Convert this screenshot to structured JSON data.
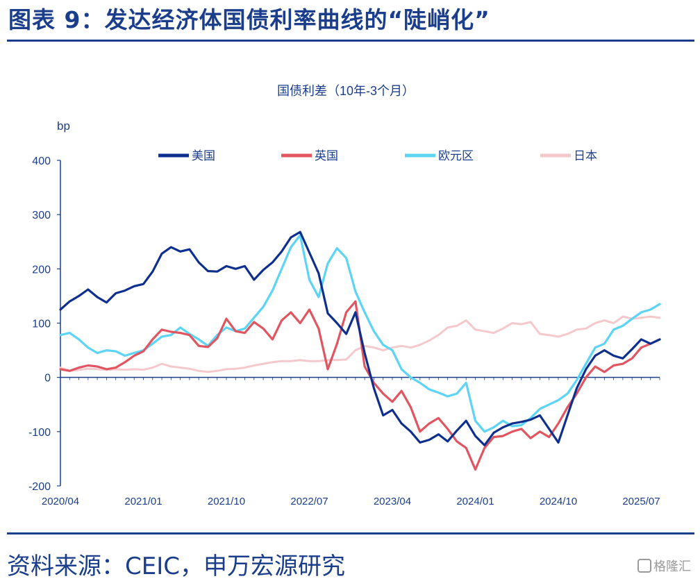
{
  "figure": {
    "title": "图表 9：发达经济体国债利率曲线的“陡峭化”",
    "source": "资料来源：CEIC，申万宏源研究",
    "watermark": "格隆汇"
  },
  "chart_data": {
    "type": "line",
    "title": "国债利差（10年-3个月）",
    "ylabel": "bp",
    "ylim": [
      -200,
      400
    ],
    "yticks": [
      400,
      300,
      200,
      100,
      0,
      -100,
      -200
    ],
    "xlim": [
      "2020-04",
      "2025-09"
    ],
    "xticks": [
      "2020/04",
      "2021/01",
      "2021/10",
      "2022/07",
      "2023/04",
      "2024/01",
      "2024/10",
      "2025/07"
    ],
    "legend_position": "top",
    "grid": false,
    "series": [
      {
        "name": "美国",
        "color": "#0f2f8f",
        "points": [
          [
            "2020-04",
            125
          ],
          [
            "2020-05",
            140
          ],
          [
            "2020-06",
            150
          ],
          [
            "2020-07",
            162
          ],
          [
            "2020-08",
            148
          ],
          [
            "2020-09",
            138
          ],
          [
            "2020-10",
            155
          ],
          [
            "2020-11",
            160
          ],
          [
            "2020-12",
            168
          ],
          [
            "2021-01",
            172
          ],
          [
            "2021-02",
            195
          ],
          [
            "2021-03",
            228
          ],
          [
            "2021-04",
            240
          ],
          [
            "2021-05",
            232
          ],
          [
            "2021-06",
            236
          ],
          [
            "2021-07",
            212
          ],
          [
            "2021-08",
            196
          ],
          [
            "2021-09",
            195
          ],
          [
            "2021-10",
            205
          ],
          [
            "2021-11",
            200
          ],
          [
            "2021-12",
            205
          ],
          [
            "2022-01",
            180
          ],
          [
            "2022-02",
            198
          ],
          [
            "2022-03",
            212
          ],
          [
            "2022-04",
            232
          ],
          [
            "2022-05",
            258
          ],
          [
            "2022-06",
            268
          ],
          [
            "2022-07",
            230
          ],
          [
            "2022-08",
            192
          ],
          [
            "2022-09",
            118
          ],
          [
            "2022-10",
            100
          ],
          [
            "2022-11",
            80
          ],
          [
            "2022-12",
            120
          ],
          [
            "2023-01",
            45
          ],
          [
            "2023-02",
            -20
          ],
          [
            "2023-03",
            -70
          ],
          [
            "2023-04",
            -60
          ],
          [
            "2023-05",
            -85
          ],
          [
            "2023-06",
            -100
          ],
          [
            "2023-07",
            -120
          ],
          [
            "2023-08",
            -115
          ],
          [
            "2023-09",
            -105
          ],
          [
            "2023-10",
            -118
          ],
          [
            "2023-11",
            -98
          ],
          [
            "2023-12",
            -80
          ],
          [
            "2024-01",
            -108
          ],
          [
            "2024-02",
            -125
          ],
          [
            "2024-03",
            -102
          ],
          [
            "2024-04",
            -92
          ],
          [
            "2024-05",
            -85
          ],
          [
            "2024-06",
            -82
          ],
          [
            "2024-07",
            -78
          ],
          [
            "2024-08",
            -70
          ],
          [
            "2024-09",
            -95
          ],
          [
            "2024-10",
            -120
          ],
          [
            "2024-11",
            -70
          ],
          [
            "2024-12",
            -20
          ],
          [
            "2025-01",
            15
          ],
          [
            "2025-02",
            40
          ],
          [
            "2025-03",
            50
          ],
          [
            "2025-04",
            40
          ],
          [
            "2025-05",
            35
          ],
          [
            "2025-06",
            52
          ],
          [
            "2025-07",
            70
          ],
          [
            "2025-08",
            62
          ],
          [
            "2025-09",
            70
          ]
        ]
      },
      {
        "name": "英国",
        "color": "#e05560",
        "points": [
          [
            "2020-04",
            15
          ],
          [
            "2020-05",
            12
          ],
          [
            "2020-06",
            18
          ],
          [
            "2020-07",
            22
          ],
          [
            "2020-08",
            20
          ],
          [
            "2020-09",
            15
          ],
          [
            "2020-10",
            18
          ],
          [
            "2020-11",
            28
          ],
          [
            "2020-12",
            40
          ],
          [
            "2021-01",
            48
          ],
          [
            "2021-02",
            70
          ],
          [
            "2021-03",
            88
          ],
          [
            "2021-04",
            84
          ],
          [
            "2021-05",
            82
          ],
          [
            "2021-06",
            78
          ],
          [
            "2021-07",
            58
          ],
          [
            "2021-08",
            56
          ],
          [
            "2021-09",
            72
          ],
          [
            "2021-10",
            108
          ],
          [
            "2021-11",
            85
          ],
          [
            "2021-12",
            82
          ],
          [
            "2022-01",
            102
          ],
          [
            "2022-02",
            90
          ],
          [
            "2022-03",
            70
          ],
          [
            "2022-04",
            105
          ],
          [
            "2022-05",
            120
          ],
          [
            "2022-06",
            100
          ],
          [
            "2022-07",
            125
          ],
          [
            "2022-08",
            90
          ],
          [
            "2022-09",
            15
          ],
          [
            "2022-10",
            62
          ],
          [
            "2022-11",
            120
          ],
          [
            "2022-12",
            140
          ],
          [
            "2023-01",
            20
          ],
          [
            "2023-02",
            -10
          ],
          [
            "2023-03",
            -30
          ],
          [
            "2023-04",
            -45
          ],
          [
            "2023-05",
            -25
          ],
          [
            "2023-06",
            -55
          ],
          [
            "2023-07",
            -100
          ],
          [
            "2023-08",
            -85
          ],
          [
            "2023-09",
            -75
          ],
          [
            "2023-10",
            -95
          ],
          [
            "2023-11",
            -118
          ],
          [
            "2023-12",
            -130
          ],
          [
            "2024-01",
            -170
          ],
          [
            "2024-02",
            -130
          ],
          [
            "2024-03",
            -110
          ],
          [
            "2024-04",
            -108
          ],
          [
            "2024-05",
            -100
          ],
          [
            "2024-06",
            -95
          ],
          [
            "2024-07",
            -112
          ],
          [
            "2024-08",
            -100
          ],
          [
            "2024-09",
            -110
          ],
          [
            "2024-10",
            -85
          ],
          [
            "2024-11",
            -55
          ],
          [
            "2024-12",
            -30
          ],
          [
            "2025-01",
            0
          ],
          [
            "2025-02",
            20
          ],
          [
            "2025-03",
            10
          ],
          [
            "2025-04",
            22
          ],
          [
            "2025-05",
            25
          ],
          [
            "2025-06",
            35
          ],
          [
            "2025-07",
            55
          ],
          [
            "2025-08",
            62
          ],
          [
            "2025-09",
            70
          ]
        ]
      },
      {
        "name": "欧元区",
        "color": "#5bd4f5",
        "points": [
          [
            "2020-04",
            78
          ],
          [
            "2020-05",
            82
          ],
          [
            "2020-06",
            70
          ],
          [
            "2020-07",
            55
          ],
          [
            "2020-08",
            45
          ],
          [
            "2020-09",
            50
          ],
          [
            "2020-10",
            48
          ],
          [
            "2020-11",
            40
          ],
          [
            "2020-12",
            45
          ],
          [
            "2021-01",
            50
          ],
          [
            "2021-02",
            62
          ],
          [
            "2021-03",
            75
          ],
          [
            "2021-04",
            78
          ],
          [
            "2021-05",
            92
          ],
          [
            "2021-06",
            80
          ],
          [
            "2021-07",
            70
          ],
          [
            "2021-08",
            58
          ],
          [
            "2021-09",
            78
          ],
          [
            "2021-10",
            92
          ],
          [
            "2021-11",
            85
          ],
          [
            "2021-12",
            90
          ],
          [
            "2022-01",
            110
          ],
          [
            "2022-02",
            130
          ],
          [
            "2022-03",
            160
          ],
          [
            "2022-04",
            200
          ],
          [
            "2022-05",
            240
          ],
          [
            "2022-06",
            262
          ],
          [
            "2022-07",
            180
          ],
          [
            "2022-08",
            148
          ],
          [
            "2022-09",
            210
          ],
          [
            "2022-10",
            238
          ],
          [
            "2022-11",
            220
          ],
          [
            "2022-12",
            158
          ],
          [
            "2023-01",
            120
          ],
          [
            "2023-02",
            85
          ],
          [
            "2023-03",
            60
          ],
          [
            "2023-04",
            50
          ],
          [
            "2023-05",
            15
          ],
          [
            "2023-06",
            0
          ],
          [
            "2023-07",
            -10
          ],
          [
            "2023-08",
            -22
          ],
          [
            "2023-09",
            -28
          ],
          [
            "2023-10",
            -35
          ],
          [
            "2023-11",
            -30
          ],
          [
            "2023-12",
            -10
          ],
          [
            "2024-01",
            -80
          ],
          [
            "2024-02",
            -100
          ],
          [
            "2024-03",
            -92
          ],
          [
            "2024-04",
            -80
          ],
          [
            "2024-05",
            -90
          ],
          [
            "2024-06",
            -88
          ],
          [
            "2024-07",
            -75
          ],
          [
            "2024-08",
            -58
          ],
          [
            "2024-09",
            -50
          ],
          [
            "2024-10",
            -42
          ],
          [
            "2024-11",
            -30
          ],
          [
            "2024-12",
            -5
          ],
          [
            "2025-01",
            25
          ],
          [
            "2025-02",
            55
          ],
          [
            "2025-03",
            62
          ],
          [
            "2025-04",
            88
          ],
          [
            "2025-05",
            95
          ],
          [
            "2025-06",
            108
          ],
          [
            "2025-07",
            120
          ],
          [
            "2025-08",
            125
          ],
          [
            "2025-09",
            135
          ]
        ]
      },
      {
        "name": "日本",
        "color": "#f5c8cc",
        "points": [
          [
            "2020-04",
            18
          ],
          [
            "2020-05",
            12
          ],
          [
            "2020-06",
            14
          ],
          [
            "2020-07",
            16
          ],
          [
            "2020-08",
            15
          ],
          [
            "2020-09",
            14
          ],
          [
            "2020-10",
            15
          ],
          [
            "2020-11",
            14
          ],
          [
            "2020-12",
            15
          ],
          [
            "2021-01",
            14
          ],
          [
            "2021-02",
            18
          ],
          [
            "2021-03",
            25
          ],
          [
            "2021-04",
            20
          ],
          [
            "2021-05",
            18
          ],
          [
            "2021-06",
            16
          ],
          [
            "2021-07",
            12
          ],
          [
            "2021-08",
            10
          ],
          [
            "2021-09",
            12
          ],
          [
            "2021-10",
            15
          ],
          [
            "2021-11",
            16
          ],
          [
            "2021-12",
            18
          ],
          [
            "2022-01",
            22
          ],
          [
            "2022-02",
            25
          ],
          [
            "2022-03",
            28
          ],
          [
            "2022-04",
            30
          ],
          [
            "2022-05",
            30
          ],
          [
            "2022-06",
            32
          ],
          [
            "2022-07",
            30
          ],
          [
            "2022-08",
            30
          ],
          [
            "2022-09",
            32
          ],
          [
            "2022-10",
            32
          ],
          [
            "2022-11",
            33
          ],
          [
            "2022-12",
            50
          ],
          [
            "2023-01",
            58
          ],
          [
            "2023-02",
            55
          ],
          [
            "2023-03",
            50
          ],
          [
            "2023-04",
            55
          ],
          [
            "2023-05",
            58
          ],
          [
            "2023-06",
            55
          ],
          [
            "2023-07",
            60
          ],
          [
            "2023-08",
            68
          ],
          [
            "2023-09",
            78
          ],
          [
            "2023-10",
            92
          ],
          [
            "2023-11",
            95
          ],
          [
            "2023-12",
            105
          ],
          [
            "2024-01",
            88
          ],
          [
            "2024-02",
            85
          ],
          [
            "2024-03",
            82
          ],
          [
            "2024-04",
            90
          ],
          [
            "2024-05",
            100
          ],
          [
            "2024-06",
            98
          ],
          [
            "2024-07",
            102
          ],
          [
            "2024-08",
            80
          ],
          [
            "2024-09",
            78
          ],
          [
            "2024-10",
            75
          ],
          [
            "2024-11",
            80
          ],
          [
            "2024-12",
            88
          ],
          [
            "2025-01",
            90
          ],
          [
            "2025-02",
            100
          ],
          [
            "2025-03",
            105
          ],
          [
            "2025-04",
            100
          ],
          [
            "2025-05",
            112
          ],
          [
            "2025-06",
            108
          ],
          [
            "2025-07",
            110
          ],
          [
            "2025-08",
            112
          ],
          [
            "2025-09",
            110
          ]
        ]
      }
    ]
  }
}
